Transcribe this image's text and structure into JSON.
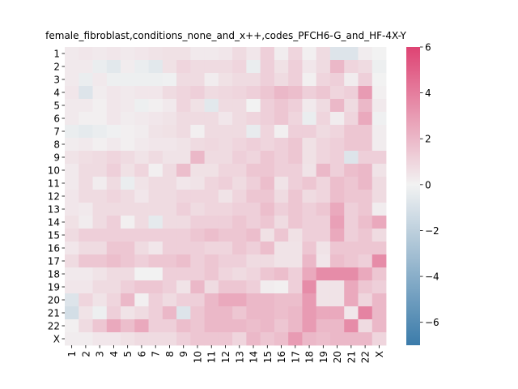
{
  "chart_data": {
    "type": "heatmap",
    "title": "female_fibroblast,conditions_none_and_x++,codes_PFCH6-G_and_HF-4X-Y",
    "xlabel": "",
    "ylabel": "",
    "row_labels": [
      "1",
      "2",
      "3",
      "4",
      "5",
      "6",
      "7",
      "8",
      "9",
      "10",
      "11",
      "12",
      "13",
      "14",
      "15",
      "16",
      "17",
      "18",
      "19",
      "20",
      "21",
      "22",
      "X"
    ],
    "col_labels": [
      "1",
      "2",
      "3",
      "4",
      "5",
      "6",
      "7",
      "8",
      "9",
      "10",
      "11",
      "12",
      "13",
      "14",
      "15",
      "16",
      "17",
      "18",
      "19",
      "20",
      "21",
      "22",
      "X"
    ],
    "values": [
      [
        0.3,
        0.4,
        0.3,
        0.4,
        0.3,
        0.4,
        0.5,
        0.6,
        0.6,
        0.3,
        0.3,
        0.4,
        0.8,
        0.4,
        1.2,
        0.2,
        1.0,
        0.1,
        0.8,
        -0.8,
        -0.8,
        0.2,
        0.0
      ],
      [
        0.3,
        0.3,
        -0.3,
        -0.6,
        0.2,
        -0.3,
        -0.6,
        0.6,
        1.0,
        0.8,
        0.8,
        0.8,
        1.0,
        -0.3,
        1.2,
        0.6,
        1.2,
        0.4,
        0.8,
        2.0,
        1.0,
        0.8,
        -0.2
      ],
      [
        0.3,
        -0.3,
        0.3,
        -0.2,
        -0.2,
        -0.2,
        -0.2,
        -0.1,
        0.8,
        0.8,
        0.2,
        0.6,
        0.8,
        0.8,
        1.2,
        0.8,
        1.2,
        0.1,
        1.0,
        1.2,
        0.2,
        1.2,
        0.0
      ],
      [
        0.4,
        -0.8,
        0.2,
        0.4,
        0.3,
        0.4,
        0.4,
        0.8,
        1.0,
        1.2,
        0.8,
        0.9,
        1.0,
        1.2,
        1.5,
        2.0,
        1.8,
        1.2,
        1.5,
        1.0,
        1.2,
        3.0,
        0.1
      ],
      [
        0.3,
        0.3,
        0.1,
        0.4,
        0.3,
        -0.2,
        0.1,
        0.3,
        1.0,
        0.6,
        -0.6,
        0.8,
        0.8,
        0.0,
        1.2,
        1.5,
        1.2,
        0.3,
        0.8,
        2.0,
        0.8,
        2.0,
        0.3
      ],
      [
        0.3,
        0.1,
        0.1,
        0.4,
        0.2,
        0.3,
        0.4,
        0.5,
        0.8,
        0.8,
        0.8,
        0.4,
        0.8,
        1.0,
        1.2,
        1.5,
        1.0,
        -0.3,
        1.0,
        0.2,
        1.0,
        2.5,
        -0.1
      ],
      [
        -0.3,
        -0.5,
        -0.3,
        -0.1,
        0.1,
        0.2,
        0.5,
        0.6,
        0.8,
        0.1,
        0.8,
        0.8,
        0.8,
        -0.4,
        1.0,
        0.1,
        1.2,
        1.2,
        0.8,
        1.0,
        1.5,
        1.5,
        0.2
      ],
      [
        0.2,
        0.3,
        0.1,
        0.3,
        0.1,
        0.3,
        0.4,
        0.4,
        0.5,
        0.8,
        0.9,
        0.8,
        1.0,
        1.2,
        1.0,
        1.2,
        1.5,
        0.6,
        1.0,
        1.2,
        1.5,
        1.5,
        0.2
      ],
      [
        0.5,
        0.7,
        0.8,
        1.0,
        0.8,
        0.5,
        0.8,
        0.5,
        0.5,
        2.0,
        0.8,
        0.8,
        1.2,
        1.0,
        1.5,
        1.2,
        1.5,
        0.6,
        1.0,
        1.2,
        -0.8,
        1.2,
        1.2
      ],
      [
        0.3,
        0.8,
        0.8,
        1.2,
        0.6,
        1.0,
        0.1,
        0.8,
        1.8,
        0.6,
        0.6,
        1.0,
        1.0,
        1.5,
        1.5,
        1.2,
        1.2,
        0.5,
        2.0,
        1.2,
        1.8,
        2.0,
        0.5
      ],
      [
        0.3,
        0.8,
        0.2,
        0.8,
        -0.3,
        0.5,
        0.8,
        0.8,
        0.4,
        0.5,
        1.0,
        1.2,
        0.8,
        1.2,
        1.8,
        0.5,
        1.2,
        1.5,
        1.0,
        1.8,
        1.5,
        2.0,
        0.8
      ],
      [
        0.4,
        0.8,
        0.8,
        1.0,
        0.8,
        0.4,
        0.8,
        0.8,
        1.0,
        1.0,
        1.0,
        0.5,
        1.0,
        1.5,
        1.5,
        0.8,
        1.5,
        0.8,
        1.0,
        1.8,
        1.5,
        1.5,
        0.8
      ],
      [
        0.4,
        0.3,
        0.8,
        0.8,
        0.8,
        0.8,
        0.8,
        0.8,
        1.2,
        0.8,
        1.0,
        1.0,
        1.2,
        1.2,
        1.8,
        1.2,
        1.5,
        1.2,
        1.5,
        2.5,
        1.2,
        1.5,
        0.2
      ],
      [
        0.6,
        0.2,
        0.8,
        1.2,
        0.1,
        0.8,
        -0.5,
        0.8,
        0.8,
        1.2,
        1.2,
        1.2,
        1.5,
        1.2,
        1.5,
        0.8,
        1.5,
        1.2,
        1.2,
        2.8,
        1.2,
        1.8,
        2.5
      ],
      [
        0.8,
        1.2,
        1.2,
        1.2,
        1.2,
        1.2,
        1.2,
        1.2,
        1.2,
        1.5,
        1.8,
        1.5,
        1.5,
        1.8,
        0.6,
        1.5,
        0.6,
        1.2,
        1.2,
        2.5,
        1.2,
        1.5,
        0.8
      ],
      [
        0.4,
        0.8,
        0.8,
        1.5,
        1.5,
        0.8,
        0.4,
        1.2,
        1.2,
        1.2,
        1.0,
        1.0,
        1.5,
        1.2,
        1.8,
        0.5,
        0.5,
        1.5,
        0.5,
        1.5,
        1.5,
        1.5,
        1.5
      ],
      [
        0.8,
        1.5,
        1.5,
        1.8,
        1.5,
        1.2,
        1.5,
        1.5,
        1.8,
        1.2,
        1.5,
        1.2,
        1.2,
        0.8,
        0.8,
        0.5,
        0.5,
        2.0,
        0.4,
        1.8,
        1.5,
        1.2,
        3.5
      ],
      [
        0.3,
        0.3,
        0.5,
        0.8,
        0.8,
        0.0,
        0.0,
        1.2,
        1.2,
        1.2,
        1.5,
        1.0,
        0.8,
        1.0,
        1.5,
        1.8,
        1.2,
        2.5,
        3.5,
        3.5,
        3.5,
        2.5,
        1.5
      ],
      [
        0.4,
        0.4,
        0.8,
        0.8,
        1.2,
        1.5,
        1.5,
        1.2,
        0.5,
        2.0,
        0.8,
        1.5,
        1.5,
        1.2,
        0.2,
        0.1,
        1.2,
        3.5,
        0.5,
        0.5,
        2.5,
        1.5,
        1.2
      ],
      [
        -0.8,
        1.0,
        0.5,
        1.0,
        2.0,
        0.1,
        1.2,
        0.8,
        1.2,
        1.2,
        2.0,
        2.5,
        2.5,
        2.0,
        2.0,
        1.8,
        1.8,
        3.0,
        0.5,
        0.5,
        2.5,
        1.0,
        2.0
      ],
      [
        -1.2,
        0.5,
        -0.2,
        1.2,
        0.5,
        0.8,
        1.2,
        2.0,
        -0.8,
        1.5,
        2.0,
        2.0,
        1.5,
        2.0,
        2.0,
        1.8,
        2.0,
        3.0,
        2.5,
        2.5,
        0.4,
        3.8,
        2.0
      ],
      [
        0.1,
        0.8,
        1.5,
        2.5,
        1.8,
        2.5,
        1.2,
        1.2,
        1.8,
        1.5,
        2.0,
        2.0,
        2.0,
        1.8,
        2.0,
        1.5,
        2.0,
        3.0,
        2.0,
        2.0,
        3.5,
        0.8,
        2.0
      ],
      [
        0.2,
        0.2,
        0.4,
        0.4,
        0.6,
        0.8,
        0.8,
        0.8,
        1.2,
        1.5,
        1.5,
        1.5,
        1.0,
        2.0,
        1.5,
        1.8,
        3.0,
        2.0,
        1.8,
        2.0,
        2.0,
        2.0,
        1.0
      ]
    ],
    "vmin": -7,
    "vmax": 6,
    "colorbar_ticks": [
      6,
      4,
      2,
      0,
      -2,
      -4,
      -6
    ],
    "colormap": {
      "negative": "#3b7baa",
      "center": "#f2f2f2",
      "positive": "#de4373"
    },
    "grid": false
  }
}
